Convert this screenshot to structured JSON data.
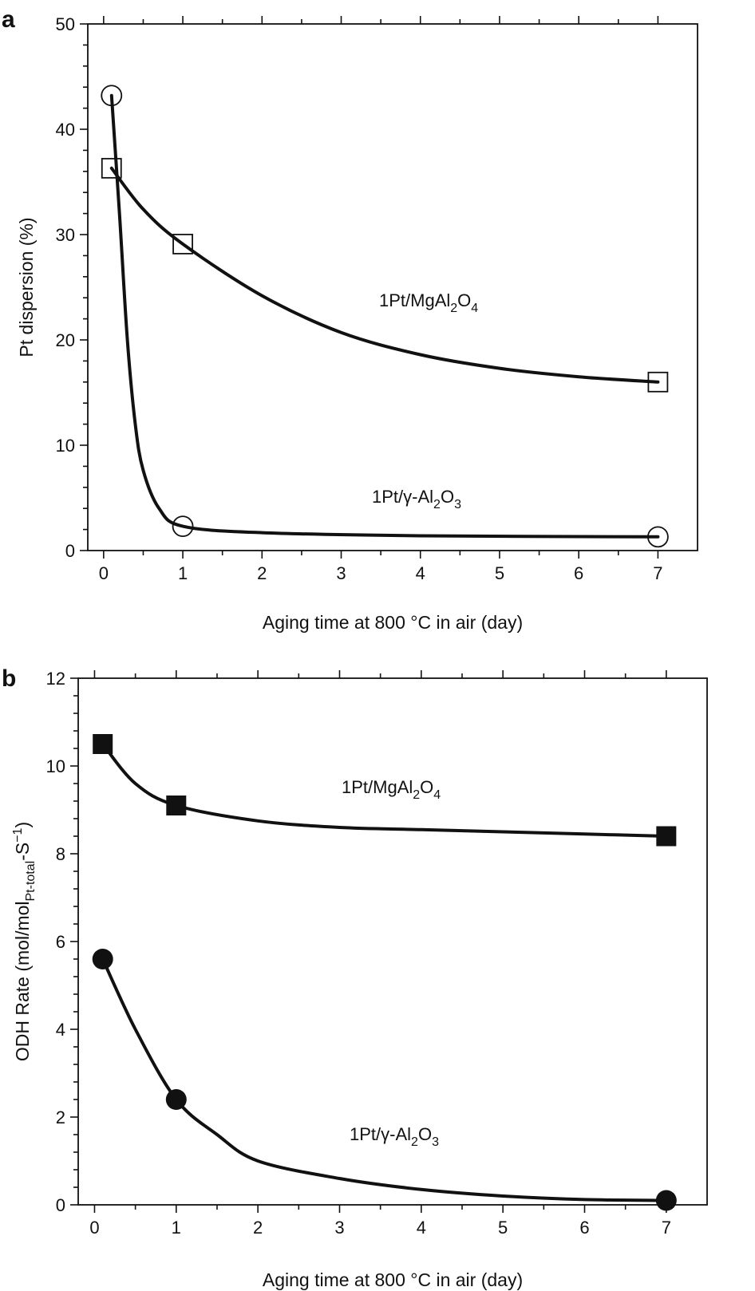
{
  "colors": {
    "ink": "#111111",
    "background": "#ffffff"
  },
  "chart_data": [
    {
      "type": "line",
      "panel": "a",
      "xlabel": "Aging time at 800 °C in air (day)",
      "ylabel": "Pt dispersion (%)",
      "xlim": [
        -0.2,
        7.5
      ],
      "ylim": [
        0,
        50
      ],
      "x_ticks": [
        0,
        1,
        2,
        3,
        4,
        5,
        6,
        7
      ],
      "y_ticks": [
        0,
        10,
        20,
        30,
        40,
        50
      ],
      "grid": false,
      "legend": "none",
      "series": [
        {
          "name": "1Pt/MgAl2O4",
          "label_parts": [
            "1Pt/MgAl",
            "2",
            "O",
            "4"
          ],
          "marker": "open-square",
          "points": [
            [
              0.1,
              36.3
            ],
            [
              1,
              29.1
            ],
            [
              7,
              16.0
            ]
          ],
          "curve": [
            [
              0.1,
              36.3
            ],
            [
              0.5,
              32.4
            ],
            [
              1,
              29.1
            ],
            [
              2,
              24.2
            ],
            [
              3,
              20.7
            ],
            [
              4,
              18.6
            ],
            [
              5,
              17.3
            ],
            [
              6,
              16.5
            ],
            [
              7,
              16.0
            ]
          ]
        },
        {
          "name": "1Pt/γ-Al2O3",
          "label_parts": [
            "1Pt/γ-Al",
            "2",
            "O",
            "3"
          ],
          "marker": "open-circle",
          "points": [
            [
              0.1,
              43.2
            ],
            [
              1,
              2.3
            ],
            [
              7,
              1.3
            ]
          ],
          "curve": [
            [
              0.1,
              43.2
            ],
            [
              0.2,
              32.0
            ],
            [
              0.3,
              20.0
            ],
            [
              0.4,
              12.0
            ],
            [
              0.5,
              7.6
            ],
            [
              0.7,
              4.0
            ],
            [
              1,
              2.3
            ],
            [
              2,
              1.7
            ],
            [
              4,
              1.4
            ],
            [
              7,
              1.3
            ]
          ]
        }
      ]
    },
    {
      "type": "line",
      "panel": "b",
      "xlabel": "Aging time at 800 °C in air (day)",
      "ylabel_parts": [
        "ODH Rate (mol/mol",
        "Pt-total",
        "-S",
        "−1",
        ")"
      ],
      "xlim": [
        -0.2,
        7.5
      ],
      "ylim": [
        0,
        12
      ],
      "x_ticks": [
        0,
        1,
        2,
        3,
        4,
        5,
        6,
        7
      ],
      "y_ticks": [
        0,
        2,
        4,
        6,
        8,
        10,
        12
      ],
      "grid": false,
      "legend": "none",
      "series": [
        {
          "name": "1Pt/MgAl2O4",
          "label_parts": [
            "1Pt/MgAl",
            "2",
            "O",
            "4"
          ],
          "marker": "filled-square",
          "points": [
            [
              0.1,
              10.5
            ],
            [
              1,
              9.1
            ],
            [
              7,
              8.4
            ]
          ],
          "curve": [
            [
              0.1,
              10.5
            ],
            [
              0.5,
              9.6
            ],
            [
              1,
              9.1
            ],
            [
              2,
              8.75
            ],
            [
              3,
              8.6
            ],
            [
              4,
              8.55
            ],
            [
              5,
              8.5
            ],
            [
              6,
              8.45
            ],
            [
              7,
              8.4
            ]
          ]
        },
        {
          "name": "1Pt/γ-Al2O3",
          "label_parts": [
            "1Pt/γ-Al",
            "2",
            "O",
            "3"
          ],
          "marker": "filled-circle",
          "points": [
            [
              0.1,
              5.6
            ],
            [
              1,
              2.4
            ],
            [
              7,
              0.1
            ]
          ],
          "curve": [
            [
              0.1,
              5.6
            ],
            [
              0.5,
              4.0
            ],
            [
              1,
              2.4
            ],
            [
              1.5,
              1.6
            ],
            [
              2,
              1.0
            ],
            [
              3,
              0.6
            ],
            [
              4,
              0.35
            ],
            [
              5,
              0.2
            ],
            [
              6,
              0.12
            ],
            [
              7,
              0.1
            ]
          ]
        }
      ]
    }
  ]
}
